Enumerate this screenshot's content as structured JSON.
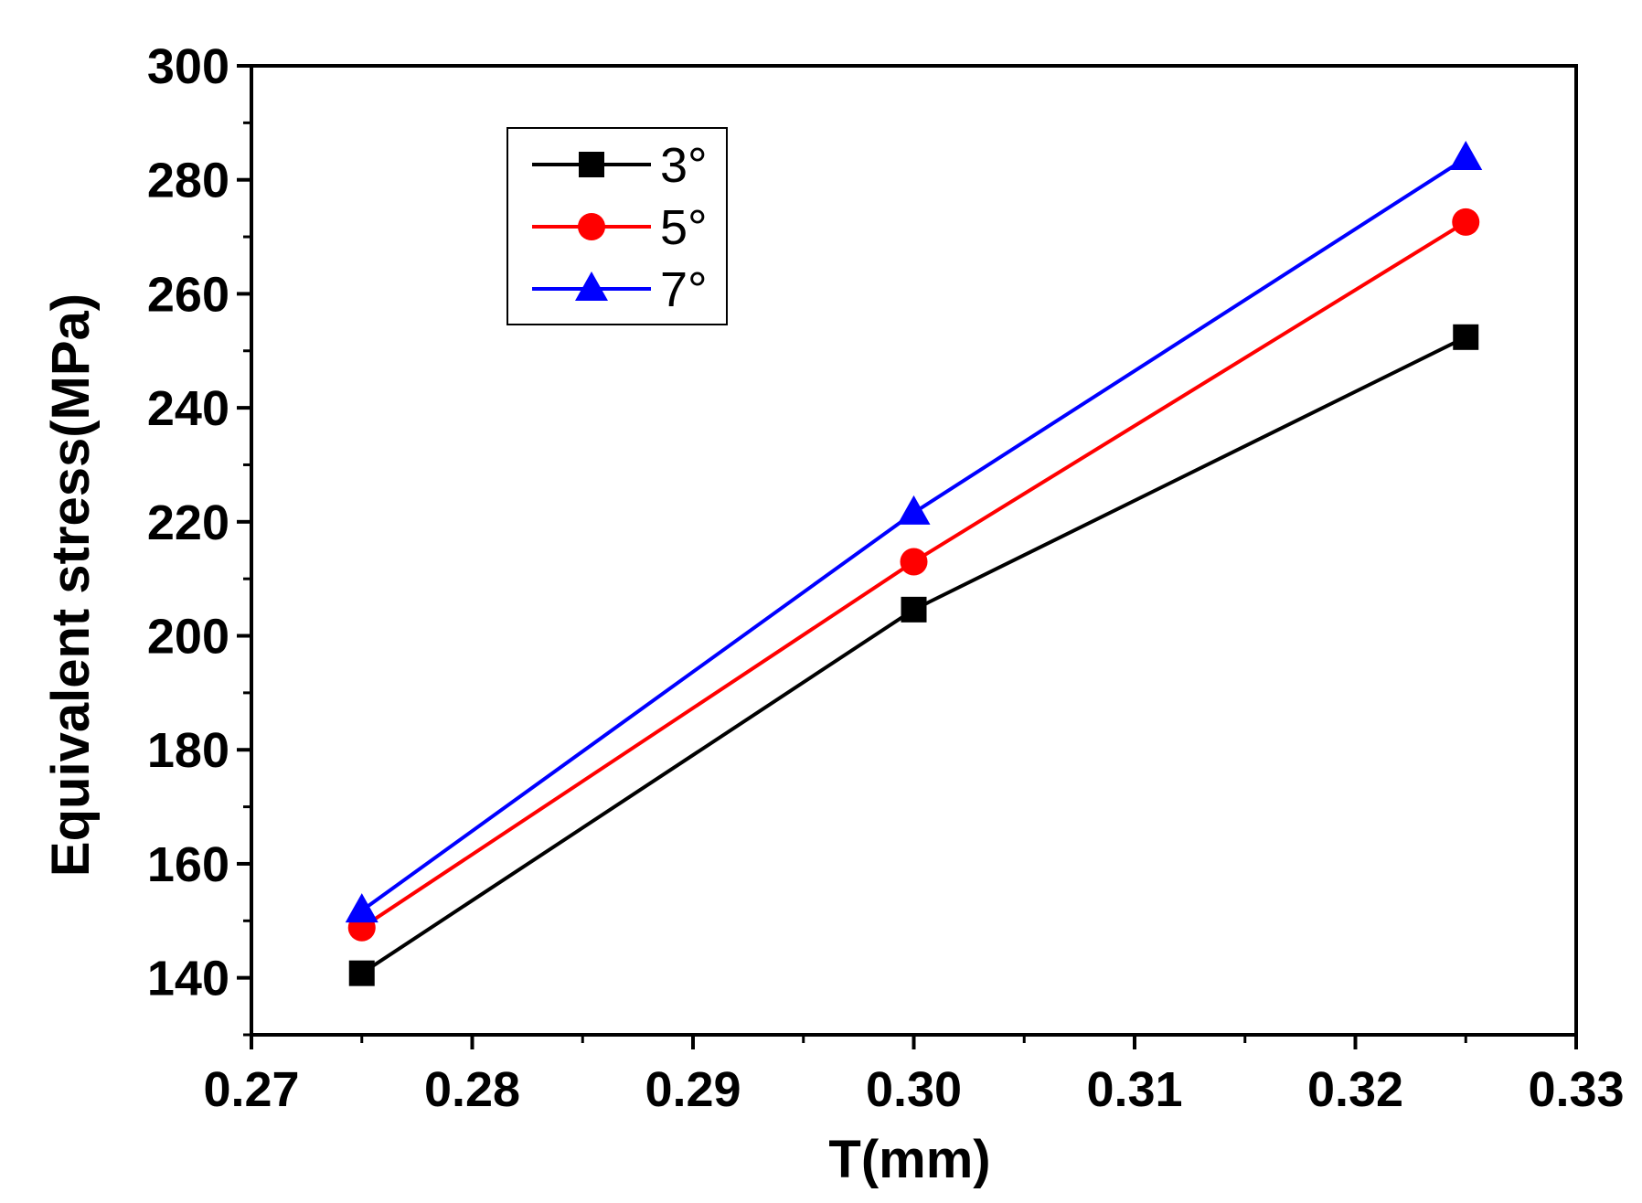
{
  "chart_data": {
    "type": "line",
    "title": "",
    "xlabel": "T(mm)",
    "ylabel": "Equivalent stress(MPa)",
    "xlim": [
      0.27,
      0.33
    ],
    "ylim": [
      130,
      300
    ],
    "x_ticks": [
      "0.27",
      "0.28",
      "0.29",
      "0.30",
      "0.31",
      "0.32",
      "0.33"
    ],
    "x_tick_values": [
      0.27,
      0.28,
      0.29,
      0.3,
      0.31,
      0.32,
      0.33
    ],
    "y_ticks": [
      "140",
      "160",
      "180",
      "200",
      "220",
      "240",
      "260",
      "280",
      "300"
    ],
    "y_tick_values": [
      140,
      160,
      180,
      200,
      220,
      240,
      260,
      280,
      300
    ],
    "legend_position": "top-left",
    "x": [
      0.275,
      0.3,
      0.325
    ],
    "series": [
      {
        "name": "3°",
        "marker": "square",
        "color": "#000000",
        "values": [
          140.8,
          204.6,
          252.4
        ]
      },
      {
        "name": "5°",
        "marker": "circle",
        "color": "#ff0000",
        "values": [
          148.8,
          213.0,
          272.6
        ]
      },
      {
        "name": "7°",
        "marker": "triangle",
        "color": "#0000ff",
        "values": [
          151.8,
          221.6,
          283.8
        ]
      }
    ]
  }
}
